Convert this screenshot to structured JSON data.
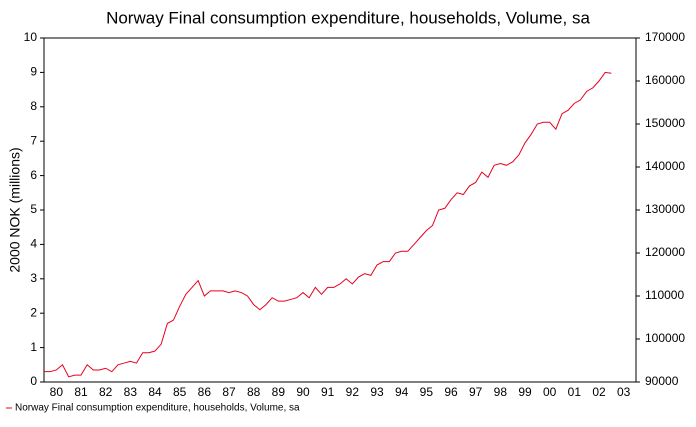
{
  "chart_data": {
    "type": "line",
    "title": "Norway Final consumption expenditure, households, Volume, sa",
    "ylabel": "2000 NOK (millions)",
    "ylim": [
      0,
      10
    ],
    "yticks": [
      0,
      1,
      2,
      3,
      4,
      5,
      6,
      7,
      8,
      9,
      10
    ],
    "y2lim": [
      90000,
      170000
    ],
    "y2ticks": [
      90000,
      100000,
      110000,
      120000,
      130000,
      140000,
      150000,
      160000,
      170000
    ],
    "xlim": [
      1980,
      2004
    ],
    "xticks": [
      {
        "value": 1980.5,
        "label": "80"
      },
      {
        "value": 1981.5,
        "label": "81"
      },
      {
        "value": 1982.5,
        "label": "82"
      },
      {
        "value": 1983.5,
        "label": "83"
      },
      {
        "value": 1984.5,
        "label": "84"
      },
      {
        "value": 1985.5,
        "label": "85"
      },
      {
        "value": 1986.5,
        "label": "86"
      },
      {
        "value": 1987.5,
        "label": "87"
      },
      {
        "value": 1988.5,
        "label": "88"
      },
      {
        "value": 1989.5,
        "label": "89"
      },
      {
        "value": 1990.5,
        "label": "90"
      },
      {
        "value": 1991.5,
        "label": "91"
      },
      {
        "value": 1992.5,
        "label": "92"
      },
      {
        "value": 1993.5,
        "label": "93"
      },
      {
        "value": 1994.5,
        "label": "94"
      },
      {
        "value": 1995.5,
        "label": "95"
      },
      {
        "value": 1996.5,
        "label": "96"
      },
      {
        "value": 1997.5,
        "label": "97"
      },
      {
        "value": 1998.5,
        "label": "98"
      },
      {
        "value": 1999.5,
        "label": "99"
      },
      {
        "value": 2000.5,
        "label": "00"
      },
      {
        "value": 2001.5,
        "label": "01"
      },
      {
        "value": 2002.5,
        "label": "02"
      },
      {
        "value": 2003.5,
        "label": "03"
      }
    ],
    "legend": "bottom-left",
    "x": [
      1980,
      1980.25,
      1980.5,
      1980.75,
      1981,
      1981.25,
      1981.5,
      1981.75,
      1982,
      1982.25,
      1982.5,
      1982.75,
      1983,
      1983.25,
      1983.5,
      1983.75,
      1984,
      1984.25,
      1984.5,
      1984.75,
      1985,
      1985.25,
      1985.5,
      1985.75,
      1986,
      1986.25,
      1986.5,
      1986.75,
      1987,
      1987.25,
      1987.5,
      1987.75,
      1988,
      1988.25,
      1988.5,
      1988.75,
      1989,
      1989.25,
      1989.5,
      1989.75,
      1990,
      1990.25,
      1990.5,
      1990.75,
      1991,
      1991.25,
      1991.5,
      1991.75,
      1992,
      1992.25,
      1992.5,
      1992.75,
      1993,
      1993.25,
      1993.5,
      1993.75,
      1994,
      1994.25,
      1994.5,
      1994.75,
      1995,
      1995.25,
      1995.5,
      1995.75,
      1996,
      1996.25,
      1996.5,
      1996.75,
      1997,
      1997.25,
      1997.5,
      1997.75,
      1998,
      1998.25,
      1998.5,
      1998.75,
      1999,
      1999.25,
      1999.5,
      1999.75,
      2000,
      2000.25,
      2000.5,
      2000.75,
      2001,
      2001.25,
      2001.5,
      2001.75,
      2002,
      2002.25,
      2002.5,
      2002.75,
      2003
    ],
    "series": [
      {
        "name": "Norway Final consumption expenditure, households, Volume, sa",
        "color": "#e8001c",
        "axis": "y2",
        "values": [
          92400,
          92400,
          92800,
          94000,
          91200,
          91600,
          91600,
          94000,
          92800,
          92800,
          93200,
          92400,
          94000,
          94400,
          94800,
          94400,
          96800,
          96800,
          97200,
          98800,
          103600,
          104400,
          107600,
          110400,
          112000,
          113600,
          110000,
          111200,
          111200,
          111200,
          110800,
          111200,
          110800,
          110000,
          108000,
          106800,
          108000,
          109600,
          108800,
          108800,
          109200,
          109600,
          110800,
          109600,
          112000,
          110400,
          112000,
          112000,
          112800,
          114000,
          112800,
          114400,
          115200,
          114800,
          117200,
          118000,
          118000,
          120000,
          120400,
          120400,
          122000,
          123600,
          125200,
          126400,
          130000,
          130400,
          132400,
          134000,
          133600,
          135600,
          136400,
          138800,
          137600,
          140400,
          140800,
          140400,
          141200,
          142800,
          145600,
          147600,
          150000,
          150400,
          150400,
          148800,
          152400,
          153200,
          154800,
          155600,
          157600,
          158400,
          160000,
          162000,
          161800
        ]
      }
    ]
  }
}
